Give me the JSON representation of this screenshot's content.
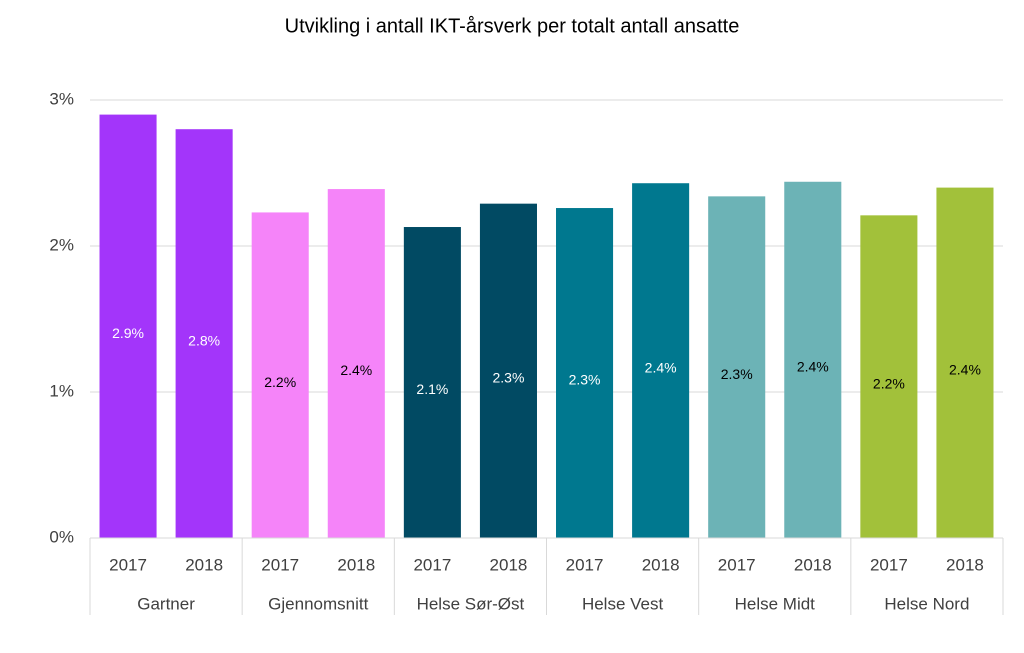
{
  "chart_data": {
    "type": "bar",
    "title": "Utvikling i antall IKT-årsverk per totalt antall ansatte",
    "series": [
      {
        "name": "Gartner",
        "color": "#a335fa",
        "categories": [
          "2017",
          "2018"
        ],
        "values": [
          2.9,
          2.8
        ],
        "value_labels": [
          "2.9%",
          "2.8%"
        ]
      },
      {
        "name": "Gjennomsnitt",
        "color": "#f584f9",
        "categories": [
          "2017",
          "2018"
        ],
        "values": [
          2.23,
          2.39
        ],
        "value_labels": [
          "2.2%",
          "2.4%"
        ]
      },
      {
        "name": "Helse Sør-Øst",
        "color": "#014a63",
        "categories": [
          "2017",
          "2018"
        ],
        "values": [
          2.13,
          2.29
        ],
        "value_labels": [
          "2.1%",
          "2.3%"
        ]
      },
      {
        "name": "Helse Vest",
        "color": "#00788f",
        "categories": [
          "2017",
          "2018"
        ],
        "values": [
          2.26,
          2.43
        ],
        "value_labels": [
          "2.3%",
          "2.4%"
        ]
      },
      {
        "name": "Helse Midt",
        "color": "#6cb3b6",
        "categories": [
          "2017",
          "2018"
        ],
        "values": [
          2.34,
          2.44
        ],
        "value_labels": [
          "2.3%",
          "2.4%"
        ]
      },
      {
        "name": "Helse Nord",
        "color": "#a2c13a",
        "categories": [
          "2017",
          "2018"
        ],
        "values": [
          2.21,
          2.4
        ],
        "value_labels": [
          "2.2%",
          "2.4%"
        ]
      }
    ],
    "ylim": [
      0,
      3
    ],
    "yticks": [
      {
        "value": 0,
        "label": "0%"
      },
      {
        "value": 1,
        "label": "1%"
      },
      {
        "value": 2,
        "label": "2%"
      },
      {
        "value": 3,
        "label": "3%"
      }
    ],
    "grid": true
  }
}
